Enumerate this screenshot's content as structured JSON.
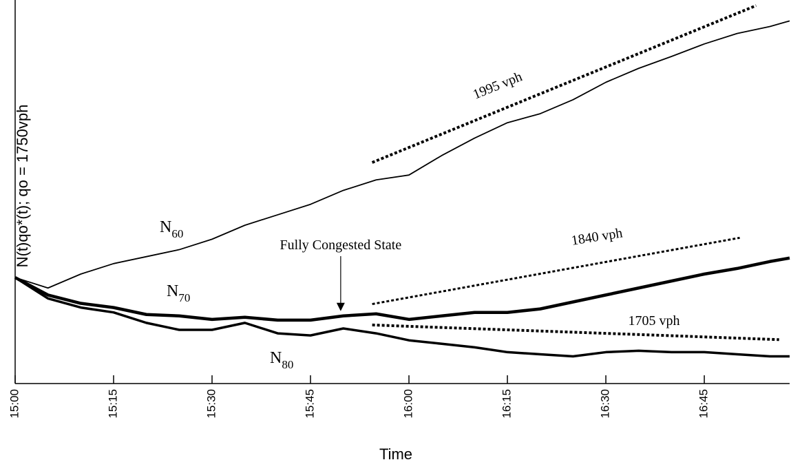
{
  "chart_data": {
    "type": "line",
    "y_label": "N(t)qo*(t); qo = 1750vph",
    "x_label": "Time",
    "xlim": [
      0,
      118
    ],
    "ylim": [
      0,
      110
    ],
    "xticks": [
      {
        "value": 0,
        "label": "15:00"
      },
      {
        "value": 15,
        "label": "15:15"
      },
      {
        "value": 30,
        "label": "15:30"
      },
      {
        "value": 45,
        "label": "15:45"
      },
      {
        "value": 60,
        "label": "16:00"
      },
      {
        "value": 75,
        "label": "16:15"
      },
      {
        "value": 90,
        "label": "16:30"
      },
      {
        "value": 105,
        "label": "16:45"
      }
    ],
    "x": [
      0,
      5,
      10,
      15,
      20,
      25,
      30,
      35,
      40,
      45,
      50,
      55,
      60,
      65,
      70,
      75,
      80,
      85,
      90,
      95,
      100,
      105,
      110,
      115,
      118
    ],
    "series": [
      {
        "name": "N60",
        "color": "#000000",
        "values": [
          30.4,
          27.4,
          31.4,
          34.4,
          36.4,
          38.4,
          41.4,
          45.4,
          48.4,
          51.4,
          55.4,
          58.4,
          59.8,
          65.4,
          70.4,
          74.8,
          77.4,
          81.4,
          86.4,
          90.4,
          93.8,
          97.4,
          100.4,
          102.4,
          104
        ]
      },
      {
        "name": "N70",
        "color": "#000000",
        "values": [
          30.4,
          25.4,
          23,
          21.8,
          19.8,
          19.4,
          18.4,
          19,
          18.2,
          18.2,
          19.4,
          20,
          18.4,
          19.4,
          20.4,
          20.4,
          21.4,
          23.4,
          25.4,
          27.4,
          29.4,
          31.4,
          33,
          35,
          36
        ]
      },
      {
        "name": "N80",
        "color": "#000000",
        "values": [
          30.4,
          24.4,
          21.8,
          20.4,
          17.4,
          15.4,
          15.4,
          17.4,
          14.4,
          13.8,
          15.8,
          14.4,
          12.4,
          11.4,
          10.4,
          9,
          8.4,
          7.8,
          9,
          9.4,
          9,
          9,
          8.4,
          7.8,
          7.8
        ]
      }
    ],
    "trend_lines": [
      {
        "label": "1995 vph",
        "x": [
          54.4,
          112.9
        ],
        "y": [
          63.4,
          108.4
        ]
      },
      {
        "label": "1840 vph",
        "x": [
          54.4,
          110.4
        ],
        "y": [
          22.8,
          41.8
        ]
      },
      {
        "label": "1705 vph",
        "x": [
          54.4,
          116.4
        ],
        "y": [
          16.8,
          12.6
        ]
      }
    ],
    "annotation": {
      "text": "Fully Congested State",
      "x": 49.6,
      "y": 20.4
    }
  }
}
